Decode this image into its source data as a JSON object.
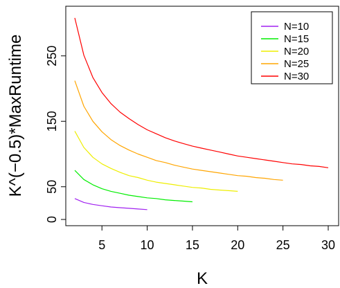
{
  "chart_data": {
    "type": "line",
    "xlabel": "K",
    "ylabel": "K^(−0.5)*MaxRuntime",
    "xlim": [
      2,
      30
    ],
    "ylim": [
      0,
      310
    ],
    "xticks": [
      "5",
      "10",
      "15",
      "20",
      "25",
      "30"
    ],
    "yticks": [
      "0",
      "50",
      "150",
      "250"
    ],
    "grid": false,
    "legend_position": "top-right",
    "series": [
      {
        "name": "N=10",
        "color": "#A020F0",
        "x": [
          2,
          3,
          4,
          5,
          6,
          7,
          8,
          9,
          10
        ],
        "y": [
          32,
          26,
          23,
          21,
          19,
          18,
          17,
          16,
          15
        ]
      },
      {
        "name": "N=15",
        "color": "#00EE00",
        "x": [
          2,
          3,
          4,
          5,
          6,
          7,
          8,
          9,
          10,
          11,
          12,
          13,
          14,
          15
        ],
        "y": [
          75,
          61,
          53,
          47,
          43,
          40,
          37,
          35,
          33,
          32,
          30,
          29,
          28,
          27
        ]
      },
      {
        "name": "N=20",
        "color": "#EEEE00",
        "x": [
          2,
          3,
          4,
          5,
          6,
          7,
          8,
          9,
          10,
          11,
          12,
          13,
          14,
          15,
          16,
          17,
          18,
          19,
          20
        ],
        "y": [
          135,
          110,
          95,
          85,
          78,
          72,
          67,
          64,
          60,
          57,
          55,
          53,
          51,
          49,
          48,
          46,
          45,
          44,
          43
        ]
      },
      {
        "name": "N=25",
        "color": "#FFA500",
        "x": [
          2,
          3,
          4,
          5,
          6,
          7,
          8,
          9,
          10,
          11,
          12,
          13,
          14,
          15,
          16,
          17,
          18,
          19,
          20,
          21,
          22,
          23,
          24,
          25
        ],
        "y": [
          212,
          173,
          150,
          134,
          122,
          113,
          106,
          100,
          95,
          90,
          87,
          83,
          80,
          77,
          75,
          73,
          71,
          69,
          67,
          66,
          64,
          63,
          61,
          60
        ]
      },
      {
        "name": "N=30",
        "color": "#FF0000",
        "x": [
          2,
          3,
          4,
          5,
          6,
          7,
          8,
          9,
          10,
          11,
          12,
          13,
          14,
          15,
          16,
          17,
          18,
          19,
          20,
          21,
          22,
          23,
          24,
          25,
          26,
          27,
          28,
          29,
          30
        ],
        "y": [
          308,
          251,
          217,
          194,
          177,
          164,
          154,
          145,
          137,
          131,
          125,
          120,
          116,
          112,
          109,
          106,
          103,
          100,
          97,
          95,
          93,
          91,
          89,
          87,
          85,
          84,
          82,
          81,
          79
        ]
      }
    ]
  }
}
